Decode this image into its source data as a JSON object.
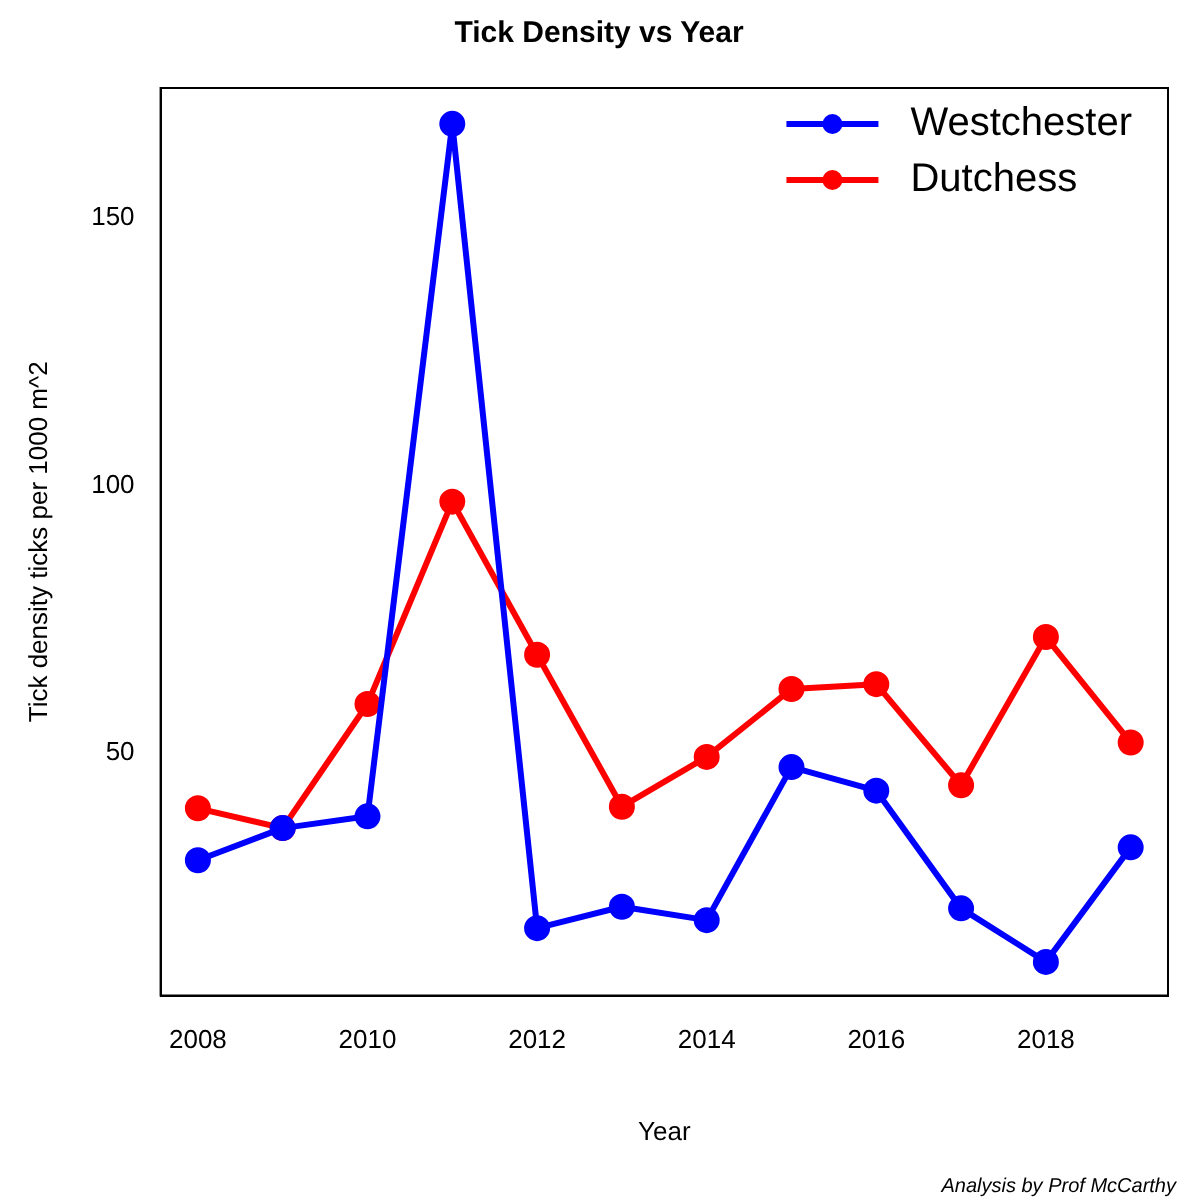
{
  "chart_data": {
    "type": "line",
    "title": "Tick Density vs Year",
    "xlabel": "Year",
    "ylabel": "Tick density ticks per 1000 m^2",
    "x": [
      2008,
      2009,
      2010,
      2011,
      2012,
      2013,
      2014,
      2015,
      2016,
      2017,
      2018,
      2019
    ],
    "series": [
      {
        "name": "Westchester",
        "color": "#0000ff",
        "values": [
          30,
          36,
          38.2,
          167.6,
          17.3,
          21.3,
          18.8,
          47.4,
          43,
          21,
          11,
          32.4
        ]
      },
      {
        "name": "Dutchess",
        "color": "#ff0000",
        "values": [
          39.7,
          36,
          59.2,
          97,
          68.4,
          40,
          49.3,
          62,
          62.9,
          44,
          71.7,
          52
        ]
      }
    ],
    "xlim": [
      2007.56,
      2019.44
    ],
    "xticks": [
      2008,
      2010,
      2012,
      2014,
      2016,
      2018
    ],
    "ylim": [
      4.7,
      174.3
    ],
    "yticks": [
      50,
      100,
      150
    ],
    "grid": false,
    "legend": "top right",
    "marker": "circle",
    "line_style": "solid",
    "annotations": [
      "Analysis by Prof McCarthy"
    ]
  }
}
